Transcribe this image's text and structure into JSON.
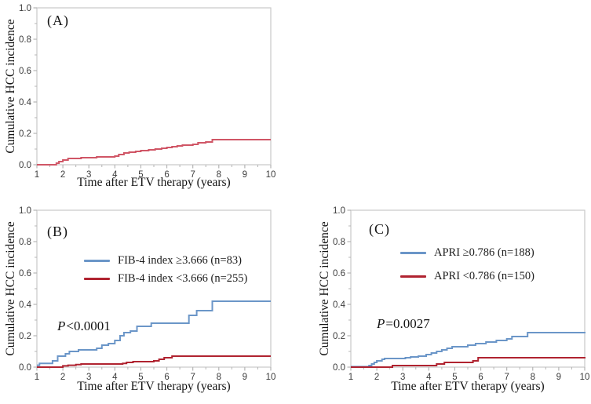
{
  "figure": {
    "background": "#ffffff",
    "axis_color": "#c9c9c9",
    "tick_color": "#b5b5b5",
    "tick_label_color": "#3c3c3c"
  },
  "chart_data": [
    {
      "type": "line",
      "panel": "(A)",
      "xlabel": "Time after ETV therapy (years)",
      "ylabel": "Cumulative HCC incidence",
      "xlim": [
        1,
        10
      ],
      "ylim": [
        0,
        1
      ],
      "xticks": [
        "1",
        "2",
        "3",
        "4",
        "5",
        "6",
        "7",
        "8",
        "9",
        "10"
      ],
      "yticks": [
        "0.0",
        "0.2",
        "0.4",
        "0.6",
        "0.8",
        "1.0"
      ],
      "grid": false,
      "legend_position": "none",
      "series": [
        {
          "color": "#d05666",
          "step_points": [
            [
              1,
              0
            ],
            [
              1.75,
              0.01
            ],
            [
              1.85,
              0.02
            ],
            [
              2.0,
              0.03
            ],
            [
              2.2,
              0.04
            ],
            [
              2.7,
              0.045
            ],
            [
              3.3,
              0.05
            ],
            [
              4.0,
              0.055
            ],
            [
              4.15,
              0.065
            ],
            [
              4.35,
              0.075
            ],
            [
              4.55,
              0.08
            ],
            [
              4.8,
              0.085
            ],
            [
              5.0,
              0.09
            ],
            [
              5.3,
              0.095
            ],
            [
              5.55,
              0.1
            ],
            [
              5.8,
              0.105
            ],
            [
              6.0,
              0.11
            ],
            [
              6.2,
              0.115
            ],
            [
              6.4,
              0.12
            ],
            [
              6.6,
              0.125
            ],
            [
              7.0,
              0.13
            ],
            [
              7.2,
              0.14
            ],
            [
              7.5,
              0.145
            ],
            [
              7.75,
              0.16
            ],
            [
              10,
              0.16
            ]
          ]
        }
      ]
    },
    {
      "type": "line",
      "panel": "(B)",
      "xlabel": "Time after ETV therapy (years)",
      "ylabel": "Cumulative HCC incidence",
      "xlim": [
        1,
        10
      ],
      "ylim": [
        0,
        1
      ],
      "xticks": [
        "1",
        "2",
        "3",
        "4",
        "5",
        "6",
        "7",
        "8",
        "9",
        "10"
      ],
      "yticks": [
        "0.0",
        "0.2",
        "0.4",
        "0.6",
        "0.8",
        "1.0"
      ],
      "grid": false,
      "legend_position": "upper-middle-inside",
      "annotation": {
        "italic": "P",
        "text": "<0.0001"
      },
      "series": [
        {
          "label": "FIB-4 index ≥3.666 (n=83)",
          "color": "#6b96c8",
          "step_points": [
            [
              1,
              0.012
            ],
            [
              1.1,
              0.024
            ],
            [
              1.6,
              0.04
            ],
            [
              1.8,
              0.07
            ],
            [
              2.1,
              0.085
            ],
            [
              2.25,
              0.1
            ],
            [
              2.6,
              0.11
            ],
            [
              3.3,
              0.12
            ],
            [
              3.5,
              0.14
            ],
            [
              3.75,
              0.15
            ],
            [
              4.0,
              0.17
            ],
            [
              4.2,
              0.2
            ],
            [
              4.35,
              0.22
            ],
            [
              4.6,
              0.23
            ],
            [
              4.85,
              0.26
            ],
            [
              5.4,
              0.28
            ],
            [
              6.85,
              0.33
            ],
            [
              7.15,
              0.36
            ],
            [
              7.75,
              0.42
            ],
            [
              10,
              0.42
            ]
          ]
        },
        {
          "label": "FIB-4 index <3.666 (n=255)",
          "color": "#b02330",
          "step_points": [
            [
              1,
              0
            ],
            [
              2.0,
              0.008
            ],
            [
              2.2,
              0.012
            ],
            [
              2.5,
              0.016
            ],
            [
              2.7,
              0.02
            ],
            [
              4.3,
              0.024
            ],
            [
              4.45,
              0.03
            ],
            [
              4.7,
              0.035
            ],
            [
              5.5,
              0.04
            ],
            [
              5.7,
              0.05
            ],
            [
              5.9,
              0.06
            ],
            [
              6.2,
              0.07
            ],
            [
              10,
              0.07
            ]
          ]
        }
      ]
    },
    {
      "type": "line",
      "panel": "(C)",
      "xlabel": "Time after ETV therapy (years)",
      "ylabel": "Cumulative HCC incidence",
      "xlim": [
        1,
        10
      ],
      "ylim": [
        0,
        1
      ],
      "xticks": [
        "1",
        "2",
        "3",
        "4",
        "5",
        "6",
        "7",
        "8",
        "9",
        "10"
      ],
      "yticks": [
        "0.0",
        "0.2",
        "0.4",
        "0.6",
        "0.8",
        "1.0"
      ],
      "grid": false,
      "legend_position": "upper-middle-inside",
      "annotation": {
        "italic": "P",
        "text": "=0.0027"
      },
      "series": [
        {
          "label": "APRI ≥0.786 (n=188)",
          "color": "#6b96c8",
          "step_points": [
            [
              1,
              0.003
            ],
            [
              1.7,
              0.01
            ],
            [
              1.8,
              0.02
            ],
            [
              1.9,
              0.03
            ],
            [
              2.0,
              0.04
            ],
            [
              2.2,
              0.05
            ],
            [
              2.3,
              0.055
            ],
            [
              3.1,
              0.06
            ],
            [
              3.3,
              0.065
            ],
            [
              3.6,
              0.07
            ],
            [
              3.9,
              0.08
            ],
            [
              4.1,
              0.09
            ],
            [
              4.3,
              0.1
            ],
            [
              4.5,
              0.11
            ],
            [
              4.7,
              0.12
            ],
            [
              4.9,
              0.13
            ],
            [
              5.5,
              0.14
            ],
            [
              5.8,
              0.15
            ],
            [
              6.2,
              0.16
            ],
            [
              6.6,
              0.17
            ],
            [
              7.0,
              0.18
            ],
            [
              7.2,
              0.195
            ],
            [
              7.8,
              0.22
            ],
            [
              10,
              0.225
            ]
          ]
        },
        {
          "label": "APRI <0.786 (n=150)",
          "color": "#b02330",
          "step_points": [
            [
              1,
              0
            ],
            [
              2.6,
              0.01
            ],
            [
              4.3,
              0.02
            ],
            [
              4.6,
              0.03
            ],
            [
              5.7,
              0.04
            ],
            [
              5.9,
              0.06
            ],
            [
              10,
              0.065
            ]
          ]
        }
      ]
    }
  ]
}
